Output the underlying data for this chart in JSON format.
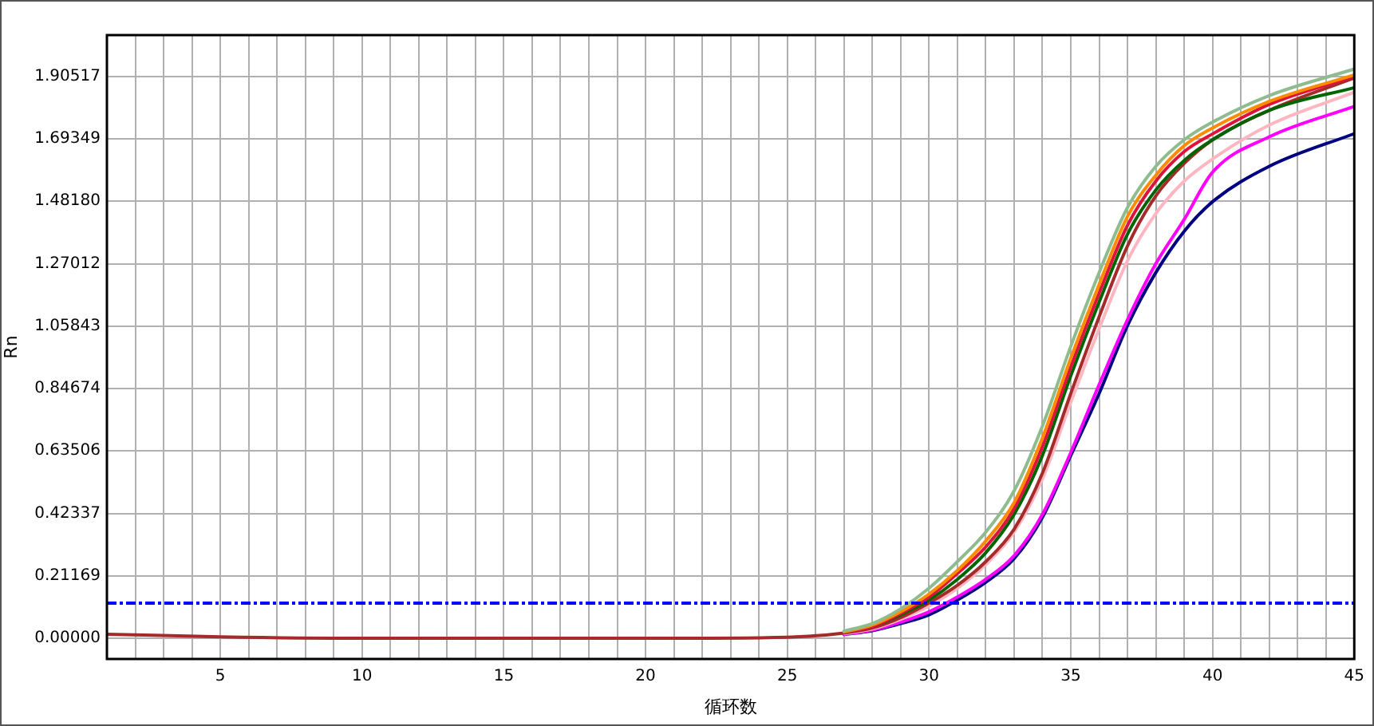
{
  "chart_data": {
    "type": "line",
    "xlabel": "循环数",
    "ylabel": "Rn",
    "x": [
      1,
      5,
      10,
      15,
      20,
      25,
      27,
      28,
      29,
      30,
      31,
      32,
      33,
      34,
      35,
      36,
      37,
      38,
      39,
      40,
      42,
      45
    ],
    "xlim": [
      1,
      45
    ],
    "xticks": [
      {
        "value": 2,
        "label": null
      },
      {
        "value": 3,
        "label": null
      },
      {
        "value": 4,
        "label": null
      },
      5,
      {
        "value": 6,
        "label": null
      },
      {
        "value": 7,
        "label": null
      },
      {
        "value": 8,
        "label": null
      },
      {
        "value": 9,
        "label": null
      },
      10,
      {
        "value": 11,
        "label": null
      },
      {
        "value": 12,
        "label": null
      },
      {
        "value": 13,
        "label": null
      },
      {
        "value": 14,
        "label": null
      },
      15,
      {
        "value": 16,
        "label": null
      },
      {
        "value": 17,
        "label": null
      },
      {
        "value": 18,
        "label": null
      },
      {
        "value": 19,
        "label": null
      },
      20,
      {
        "value": 21,
        "label": null
      },
      {
        "value": 22,
        "label": null
      },
      {
        "value": 23,
        "label": null
      },
      {
        "value": 24,
        "label": null
      },
      25,
      {
        "value": 26,
        "label": null
      },
      {
        "value": 27,
        "label": null
      },
      {
        "value": 28,
        "label": null
      },
      {
        "value": 29,
        "label": null
      },
      30,
      {
        "value": 31,
        "label": null
      },
      {
        "value": 32,
        "label": null
      },
      {
        "value": 33,
        "label": null
      },
      {
        "value": 34,
        "label": null
      },
      35,
      {
        "value": 36,
        "label": null
      },
      {
        "value": 37,
        "label": null
      },
      {
        "value": 38,
        "label": null
      },
      {
        "value": 39,
        "label": null
      },
      40,
      {
        "value": 41,
        "label": null
      },
      {
        "value": 42,
        "label": null
      },
      {
        "value": 43,
        "label": null
      },
      {
        "value": 44,
        "label": null
      },
      45
    ],
    "ylim": [
      -0.07,
      2.045
    ],
    "yticks": [
      {
        "value": 0,
        "label": "0.00000"
      },
      0.21169,
      0.42337,
      0.63506,
      0.84674,
      1.05843,
      1.27012,
      {
        "value": 1.4818,
        "label": "1.48180"
      },
      1.69349,
      1.90517
    ],
    "grid": true,
    "legend": false,
    "marker": "none",
    "series": [
      {
        "color": "#8fbc8f",
        "values": [
          null,
          null,
          null,
          null,
          null,
          null,
          0.025,
          0.05,
          0.1,
          0.17,
          0.26,
          0.36,
          0.5,
          0.72,
          0.99,
          1.24,
          1.46,
          1.6,
          1.69,
          1.75,
          1.84,
          1.93
        ]
      },
      {
        "color": "#ff8c00",
        "values": [
          null,
          null,
          null,
          null,
          null,
          null,
          0.022,
          0.045,
          0.09,
          0.15,
          0.23,
          0.33,
          0.46,
          0.68,
          0.95,
          1.2,
          1.43,
          1.57,
          1.67,
          1.73,
          1.82,
          1.91
        ]
      },
      {
        "color": "#dc143c",
        "values": [
          null,
          null,
          null,
          null,
          null,
          null,
          0.02,
          0.04,
          0.085,
          0.14,
          0.22,
          0.31,
          0.44,
          0.65,
          0.92,
          1.17,
          1.4,
          1.55,
          1.65,
          1.71,
          1.81,
          1.905
        ]
      },
      {
        "color": "#006400",
        "values": [
          null,
          null,
          null,
          null,
          null,
          null,
          0.02,
          0.04,
          0.08,
          0.13,
          0.2,
          0.29,
          0.42,
          0.62,
          0.89,
          1.14,
          1.37,
          1.52,
          1.62,
          1.69,
          1.79,
          1.867
        ]
      },
      {
        "color": "#a52a2a",
        "values": [
          0.014,
          0.005,
          0,
          0,
          0,
          0.004,
          0.018,
          0.035,
          0.07,
          0.12,
          0.18,
          0.26,
          0.37,
          0.56,
          0.83,
          1.09,
          1.33,
          1.5,
          1.61,
          1.69,
          1.79,
          1.9
        ]
      },
      {
        "color": "#ffb6c1",
        "values": [
          null,
          null,
          null,
          null,
          null,
          null,
          0.016,
          0.032,
          0.065,
          0.11,
          0.17,
          0.25,
          0.36,
          0.54,
          0.8,
          1.05,
          1.28,
          1.44,
          1.55,
          1.625,
          1.74,
          1.851
        ]
      },
      {
        "color": "#ff00ff",
        "values": [
          null,
          null,
          null,
          null,
          null,
          null,
          0.014,
          0.028,
          0.055,
          0.09,
          0.14,
          0.2,
          0.28,
          0.42,
          0.63,
          0.86,
          1.08,
          1.27,
          1.42,
          1.58,
          1.7,
          1.803
        ]
      },
      {
        "color": "#000080",
        "values": [
          null,
          null,
          null,
          null,
          null,
          null,
          0.013,
          0.026,
          0.05,
          0.08,
          0.13,
          0.19,
          0.27,
          0.41,
          0.62,
          0.83,
          1.06,
          1.24,
          1.38,
          1.48,
          1.6,
          1.711
        ]
      }
    ],
    "ref_lines": [
      {
        "axis": "y",
        "value": 0.119,
        "color": "#0000ff",
        "line_style": "dashed"
      }
    ]
  }
}
